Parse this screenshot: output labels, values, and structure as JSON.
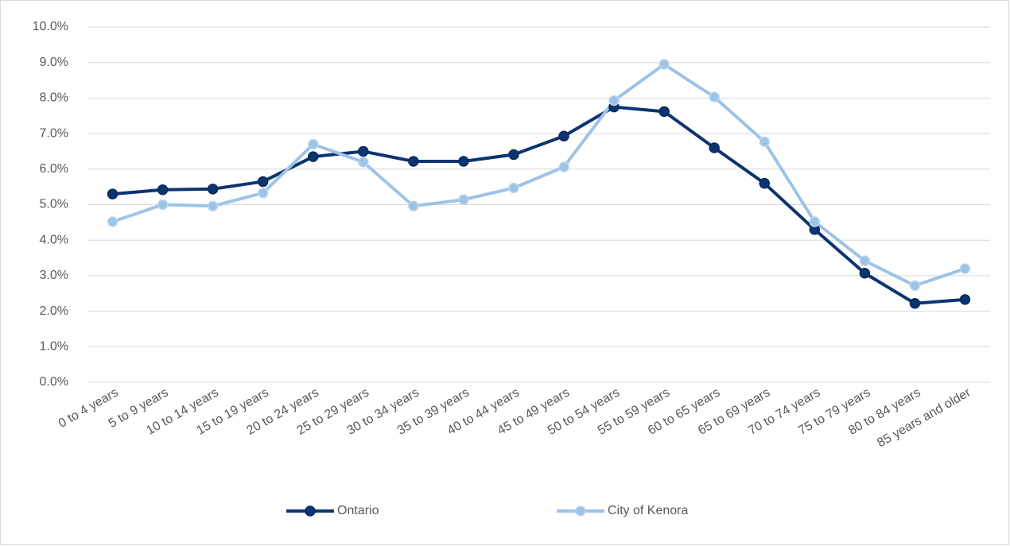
{
  "chart_data": {
    "type": "line",
    "categories": [
      "0 to 4 years",
      "5 to 9 years",
      "10 to 14 years",
      "15 to 19 years",
      "20 to 24 years",
      "25 to 29 years",
      "30 to 34 years",
      "35 to 39 years",
      "40 to 44 years",
      "45 to 49 years",
      "50 to 54 years",
      "55 to 59 years",
      "60 to 65 years",
      "65 to 69 years",
      "70 to 74 years",
      "75 to 79 years",
      "80 to 84 years",
      "85 years and older"
    ],
    "series": [
      {
        "name": "Ontario",
        "color": "#0b3470",
        "values": [
          5.3,
          5.42,
          5.44,
          5.65,
          6.35,
          6.5,
          6.22,
          6.22,
          6.41,
          6.93,
          7.75,
          7.62,
          6.6,
          5.6,
          4.3,
          3.07,
          2.22,
          2.33
        ]
      },
      {
        "name": "City of Kenora",
        "color": "#9dc3e6",
        "values": [
          4.52,
          5.0,
          4.96,
          5.33,
          6.7,
          6.2,
          4.96,
          5.14,
          5.47,
          6.06,
          7.93,
          8.95,
          8.03,
          6.77,
          4.52,
          3.42,
          2.72,
          3.2
        ]
      }
    ],
    "ylim": [
      0,
      10
    ],
    "yticks": [
      {
        "value": 0,
        "label": "0.0%"
      },
      {
        "value": 1,
        "label": "1.0%"
      },
      {
        "value": 2,
        "label": "2.0%"
      },
      {
        "value": 3,
        "label": "3.0%"
      },
      {
        "value": 4,
        "label": "4.0%"
      },
      {
        "value": 5,
        "label": "5.0%"
      },
      {
        "value": 6,
        "label": "6.0%"
      },
      {
        "value": 7,
        "label": "7.0%"
      },
      {
        "value": 8,
        "label": "8.0%"
      },
      {
        "value": 9,
        "label": "9.0%"
      },
      {
        "value": 10,
        "label": "10.0%"
      }
    ],
    "grid": true,
    "legend": "bottom"
  }
}
